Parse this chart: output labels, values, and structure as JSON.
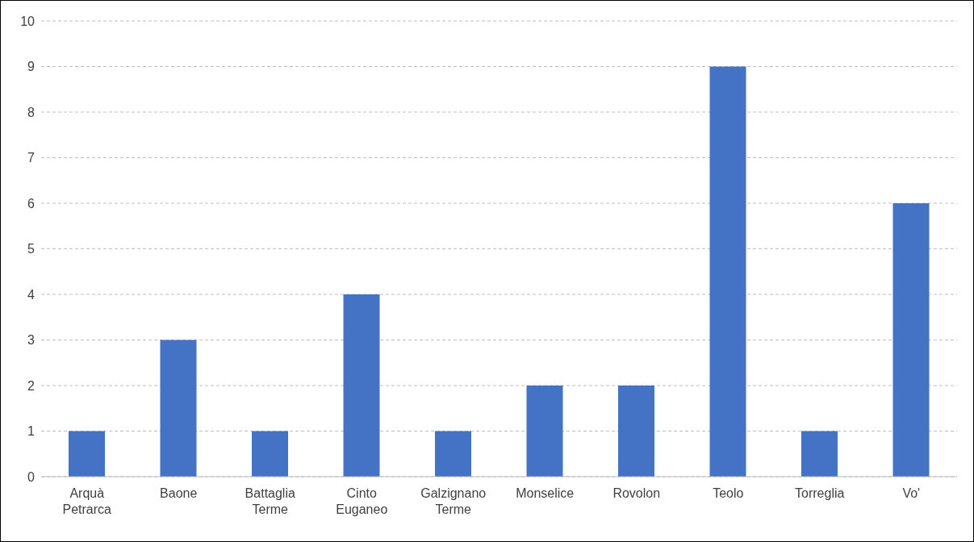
{
  "chart_data": {
    "type": "bar",
    "categories": [
      "Arquà Petrarca",
      "Baone",
      "Battaglia Terme",
      "Cinto Euganeo",
      "Galzignano Terme",
      "Monselice",
      "Rovolon",
      "Teolo",
      "Torreglia",
      "Vo'"
    ],
    "values": [
      1,
      3,
      1,
      4,
      1,
      2,
      2,
      9,
      1,
      6
    ],
    "color": "#4472c4",
    "ylim": [
      0,
      10
    ],
    "yticks": [
      0,
      1,
      2,
      3,
      4,
      5,
      6,
      7,
      8,
      9,
      10
    ],
    "grid": "y",
    "legend": false
  }
}
